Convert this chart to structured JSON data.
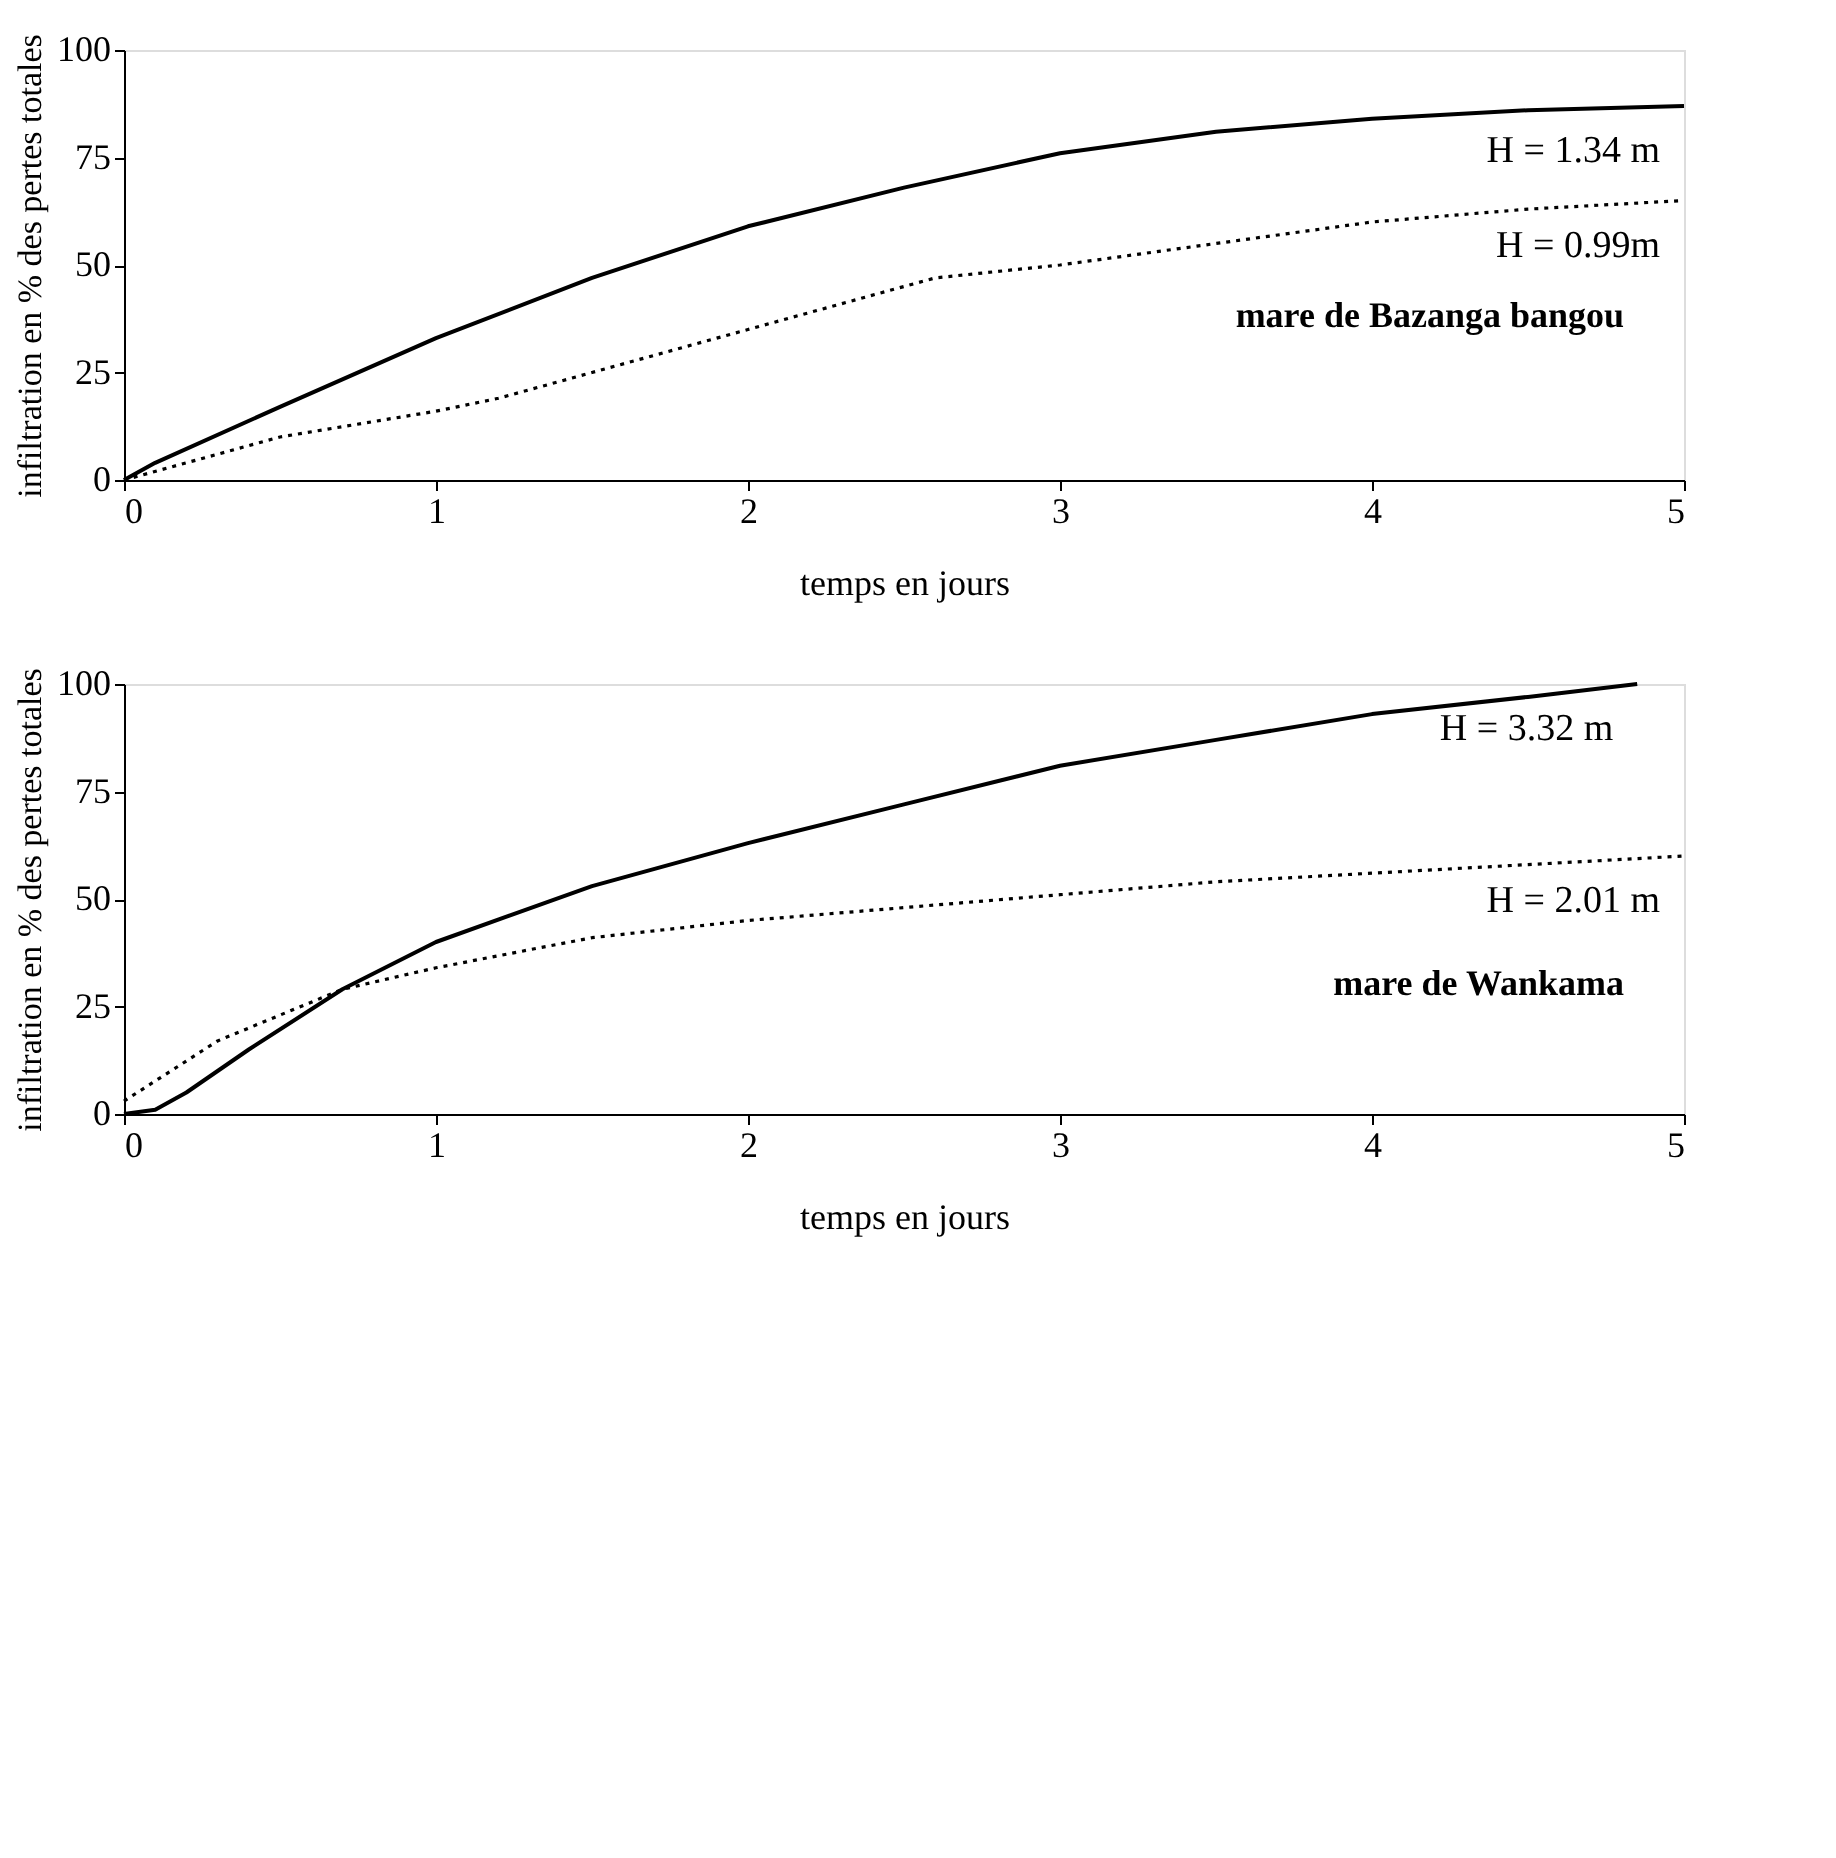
{
  "chart_data": [
    {
      "type": "line",
      "xlabel": "temps en jours",
      "ylabel": "infiltration en % des pertes totales",
      "xlim": [
        0,
        5
      ],
      "ylim": [
        0,
        100
      ],
      "xticks": [
        0,
        1,
        2,
        3,
        4,
        5
      ],
      "yticks": [
        0,
        25,
        50,
        75,
        100
      ],
      "grid": false,
      "marker": "none",
      "series": [
        {
          "name": "H = 1.34 m",
          "color": "#000000",
          "line_style": "solid",
          "x": [
            0,
            0.1,
            0.5,
            1,
            1.5,
            2,
            2.5,
            3,
            3.5,
            4,
            4.5,
            5
          ],
          "values": [
            0,
            4,
            17,
            33,
            47,
            59,
            68,
            76,
            81,
            84,
            86,
            87
          ]
        },
        {
          "name": "H = 0.99m",
          "color": "#000000",
          "line_style": "dotted",
          "x": [
            0,
            0.5,
            1,
            1.2,
            1.5,
            2,
            2.6,
            3,
            3.5,
            4,
            4.5,
            5
          ],
          "values": [
            0,
            10,
            16,
            19,
            25,
            35,
            47,
            50,
            55,
            60,
            63,
            65
          ]
        }
      ],
      "annotations": [
        "mare de Bazanga bangou"
      ]
    },
    {
      "type": "line",
      "xlabel": "temps en jours",
      "ylabel": "infiltration en % des pertes totales",
      "xlim": [
        0,
        5
      ],
      "ylim": [
        0,
        100
      ],
      "xticks": [
        0,
        1,
        2,
        3,
        4,
        5
      ],
      "yticks": [
        0,
        25,
        50,
        75,
        100
      ],
      "grid": false,
      "marker": "none",
      "series": [
        {
          "name": "H = 3.32 m",
          "color": "#000000",
          "line_style": "solid",
          "x": [
            0,
            0.1,
            0.2,
            0.4,
            0.7,
            1,
            1.5,
            2,
            2.5,
            3,
            3.5,
            4,
            4.5,
            4.85
          ],
          "values": [
            0,
            1,
            5,
            15,
            29,
            40,
            53,
            63,
            72,
            81,
            87,
            93,
            97,
            100
          ]
        },
        {
          "name": "H = 2.01 m",
          "color": "#000000",
          "line_style": "dotted",
          "x": [
            0,
            0.3,
            0.7,
            1,
            1.5,
            2,
            2.5,
            3,
            3.5,
            4,
            4.5,
            5
          ],
          "values": [
            3,
            17,
            29,
            34,
            41,
            45,
            48,
            51,
            54,
            56,
            58,
            60
          ]
        }
      ],
      "annotations": [
        "mare de Wankama"
      ]
    }
  ]
}
